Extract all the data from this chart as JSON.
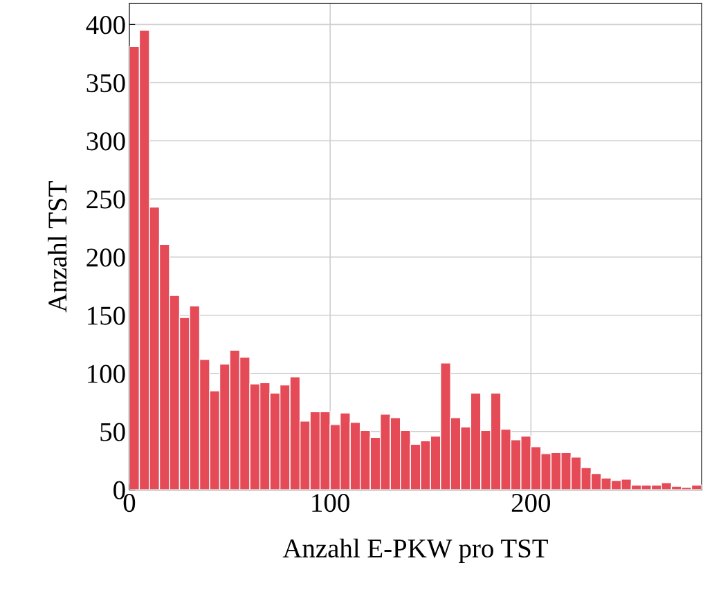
{
  "chart_data": {
    "type": "histogram",
    "xlabel": "Anzahl E-PKW pro TST",
    "ylabel": "Anzahl TST",
    "bins": [
      0,
      5,
      10,
      15,
      20,
      25,
      30,
      35,
      40,
      45,
      50,
      55,
      60,
      65,
      70,
      75,
      80,
      85,
      90,
      95,
      100,
      105,
      110,
      115,
      120,
      125,
      130,
      135,
      140,
      145,
      150,
      155,
      160,
      165,
      170,
      175,
      180,
      185,
      190,
      195,
      200,
      205,
      210,
      215,
      220,
      225,
      230,
      235,
      240,
      245,
      250,
      255,
      260,
      265,
      270,
      275,
      280,
      285
    ],
    "values": [
      381,
      395,
      243,
      211,
      167,
      148,
      158,
      112,
      85,
      108,
      120,
      114,
      91,
      92,
      83,
      90,
      97,
      59,
      67,
      67,
      56,
      66,
      58,
      51,
      45,
      65,
      62,
      51,
      39,
      42,
      46,
      109,
      62,
      54,
      83,
      51,
      83,
      52,
      43,
      46,
      37,
      31,
      32,
      32,
      28,
      19,
      14,
      10,
      8,
      9,
      4,
      4,
      4,
      6,
      3,
      2,
      4
    ],
    "color": "#e54a57",
    "xlim": [
      0,
      285
    ],
    "ylim": [
      0,
      418
    ],
    "xticks": [
      0,
      100,
      200
    ],
    "yticks": [
      0,
      50,
      100,
      150,
      200,
      250,
      300,
      350,
      400
    ],
    "grid": true
  }
}
